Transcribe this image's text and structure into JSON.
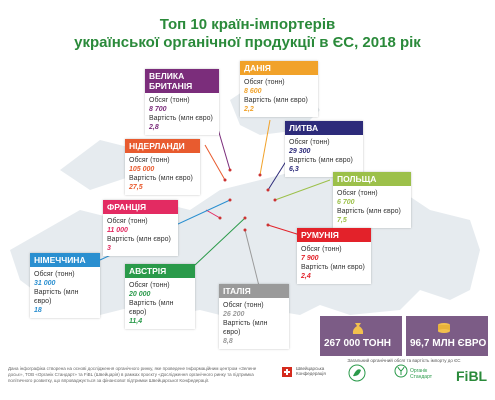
{
  "title_line1": "Топ 10 країн-імпортерів",
  "title_line2": "української органічної продукції в ЄС, 2018 рік",
  "labels": {
    "volume": "Обсяг (тонн)",
    "value": "Вартість (млн євро)"
  },
  "countries": [
    {
      "name_line1": "ВЕЛИКА",
      "name_line2": "БРИТАНІЯ",
      "volume": "8 700",
      "value": "2,8",
      "color": "#7b2d7b"
    },
    {
      "name_line1": "ДАНІЯ",
      "name_line2": "",
      "volume": "8 600",
      "value": "2,2",
      "color": "#f1a22a"
    },
    {
      "name_line1": "НІДЕРЛАНДИ",
      "name_line2": "",
      "volume": "105 000",
      "value": "27,5",
      "color": "#e85b2f"
    },
    {
      "name_line1": "ЛИТВА",
      "name_line2": "",
      "volume": "29 300",
      "value": "6,3",
      "color": "#2d2b7a"
    },
    {
      "name_line1": "ПОЛЬЩА",
      "name_line2": "",
      "volume": "6 700",
      "value": "7,5",
      "color": "#9cc04a"
    },
    {
      "name_line1": "ФРАНЦІЯ",
      "name_line2": "",
      "volume": "11 000",
      "value": "3",
      "color": "#e32b62"
    },
    {
      "name_line1": "РУМУНІЯ",
      "name_line2": "",
      "volume": "7 900",
      "value": "2,4",
      "color": "#e3222a"
    },
    {
      "name_line1": "НІМЕЧЧИНА",
      "name_line2": "",
      "volume": "31 000",
      "value": "18",
      "color": "#2a8fd0"
    },
    {
      "name_line1": "АВСТРІЯ",
      "name_line2": "",
      "volume": "20 000",
      "value": "11,4",
      "color": "#2a9a4a"
    },
    {
      "name_line1": "ІТАЛІЯ",
      "name_line2": "",
      "volume": "26 200",
      "value": "8,8",
      "color": "#9a9a9a"
    }
  ],
  "totals": {
    "volume": "267 000 ТОНН",
    "value": "96,7 МЛН ЄВРО",
    "bg_color": "#7c5c86",
    "note": "Загальний органічний обсяг та вартість імпорту до ЄС"
  },
  "footer_text": "Дана інфографіка створена на основі дослідження органічного ринку, яке проведене Інформаційним центром «Зелене досьє», ТОВ «Органік Стандарт» та FiBL (Швейцарія) в рамках проєкту «Дослідження органічного ринку та підтримка політичного розвитку, що впроваджується за фінансової підтримки Швейцарської Конфедерації.",
  "logos": {
    "ch_text": "Швейцарська Конфедерація",
    "org_std": "Органік Стандарт",
    "fibl": "FiBL"
  }
}
